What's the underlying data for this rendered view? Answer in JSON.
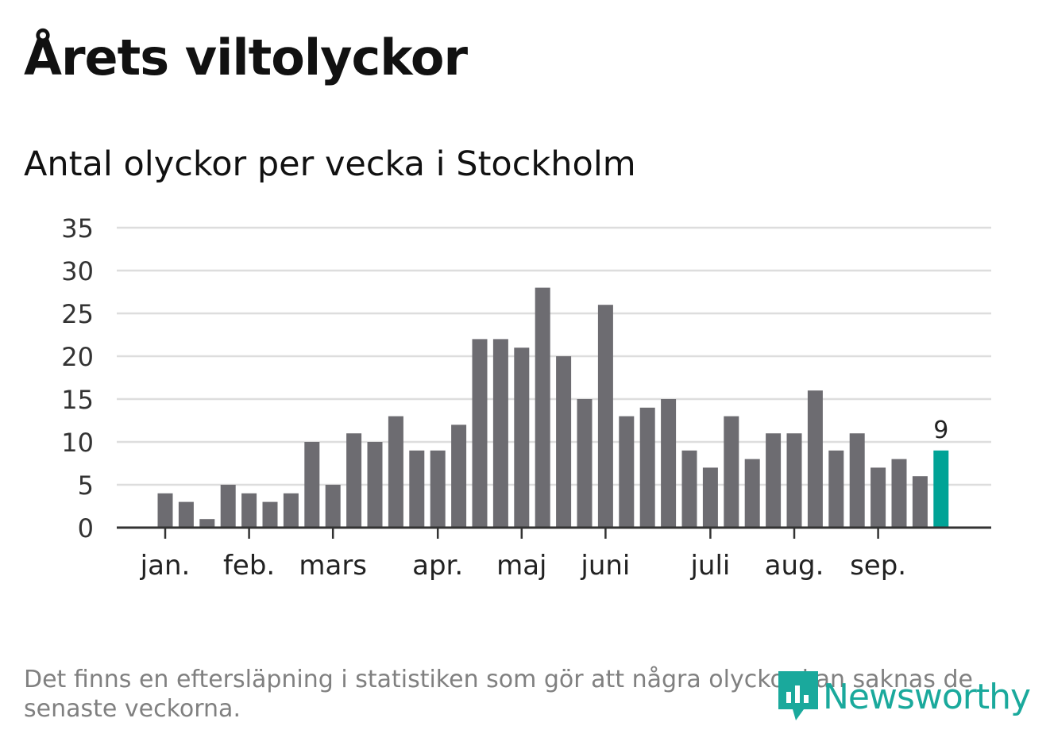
{
  "page_title": "Årets viltolyckor",
  "chart_subtitle": "Antal olyckor per vecka i Stockholm",
  "footnote": "Det finns en eftersläpning i statistiken som gör att några olyckor kan saknas de senaste veckorna.",
  "brand": {
    "name": "Newsworthy",
    "color": "#1aa99c"
  },
  "chart_data": {
    "type": "bar",
    "title": "Årets viltolyckor",
    "subtitle": "Antal olyckor per vecka i Stockholm",
    "xlabel": "",
    "ylabel": "",
    "ylim": [
      0,
      35
    ],
    "yticks": [
      0,
      5,
      10,
      15,
      20,
      25,
      30,
      35
    ],
    "grid": true,
    "values": [
      4,
      3,
      1,
      5,
      4,
      3,
      4,
      10,
      5,
      11,
      10,
      13,
      9,
      9,
      12,
      22,
      22,
      21,
      28,
      20,
      15,
      26,
      13,
      14,
      15,
      9,
      7,
      13,
      8,
      11,
      11,
      16,
      9,
      11,
      7,
      8,
      6,
      9
    ],
    "month_labels": [
      {
        "label": "jan.",
        "week": 0
      },
      {
        "label": "feb.",
        "week": 4
      },
      {
        "label": "mars",
        "week": 8
      },
      {
        "label": "apr.",
        "week": 13
      },
      {
        "label": "maj",
        "week": 17
      },
      {
        "label": "juni",
        "week": 21
      },
      {
        "label": "juli",
        "week": 26
      },
      {
        "label": "aug.",
        "week": 30
      },
      {
        "label": "sep.",
        "week": 34
      }
    ],
    "highlight_index": 37,
    "highlight_label": "9",
    "bar_color": "#6d6c71",
    "highlight_color": "#00a396",
    "grid_color": "#dddddd",
    "axis_color": "#333333"
  }
}
